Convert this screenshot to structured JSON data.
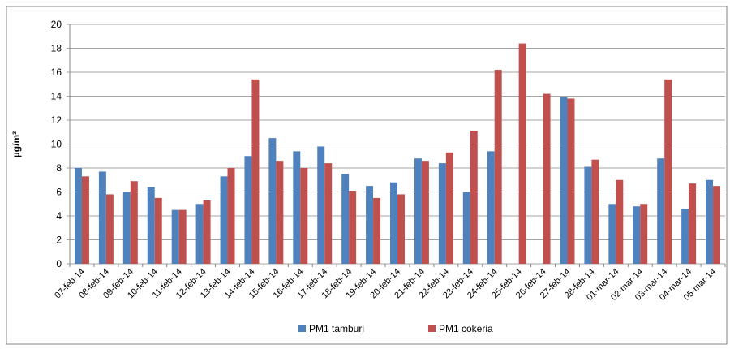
{
  "chart_data": {
    "type": "bar",
    "y_label": "µg/m³",
    "categories": [
      "07-feb-14",
      "08-feb-14",
      "09-feb-14",
      "10-feb-14",
      "11-feb-14",
      "12-feb-14",
      "13-feb-14",
      "14-feb-14",
      "15-feb-14",
      "16-feb-14",
      "17-feb-14",
      "18-feb-14",
      "19-feb-14",
      "20-feb-14",
      "21-feb-14",
      "22-feb-14",
      "23-feb-14",
      "24-feb-14",
      "25-feb-14",
      "26-feb-14",
      "27-feb-14",
      "28-feb-14",
      "01-mar-14",
      "02-mar-14",
      "03-mar-14",
      "04-mar-14",
      "05-mar-14"
    ],
    "series": [
      {
        "name": "PM1 tamburi",
        "color": "#4f81bd",
        "values": [
          8.0,
          7.7,
          6.0,
          6.4,
          4.5,
          5.0,
          7.3,
          9.0,
          10.5,
          9.4,
          9.8,
          7.5,
          6.5,
          6.8,
          8.8,
          8.4,
          6.0,
          9.4,
          null,
          null,
          13.9,
          8.1,
          5.0,
          4.8,
          8.8,
          4.6,
          7.0
        ]
      },
      {
        "name": "PM1 cokeria",
        "color": "#c0504d",
        "values": [
          7.3,
          5.8,
          6.9,
          5.5,
          4.5,
          5.3,
          8.0,
          15.4,
          8.6,
          8.0,
          8.4,
          6.1,
          5.5,
          5.8,
          8.6,
          9.3,
          11.1,
          16.2,
          18.4,
          14.2,
          13.8,
          8.7,
          7.0,
          5.0,
          15.4,
          6.7,
          6.5
        ]
      }
    ],
    "ylim": [
      0,
      20
    ],
    "yticks": [
      0,
      2,
      4,
      6,
      8,
      10,
      12,
      14,
      16,
      18,
      20
    ],
    "grid": true,
    "legend": "bottom"
  }
}
